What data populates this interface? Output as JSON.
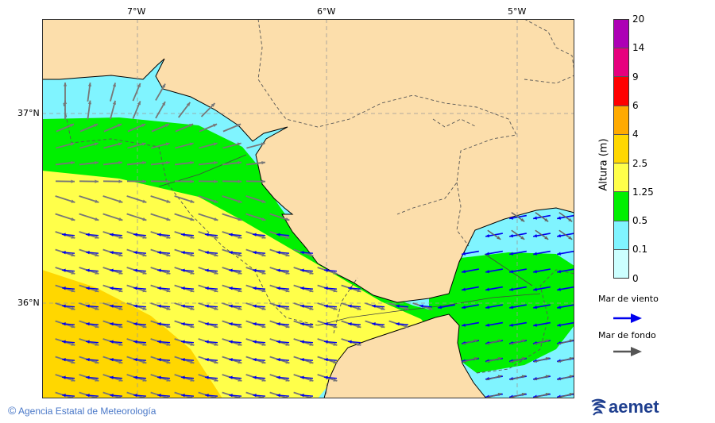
{
  "map": {
    "lon_labels": [
      "7°W",
      "6°W",
      "5°W"
    ],
    "lat_labels": [
      "37°N",
      "36°N"
    ],
    "colors": {
      "land": "#fcdeab",
      "border": "#555555",
      "grid": "#999999"
    }
  },
  "colorbar": {
    "title": "Altura (m)",
    "ticks": [
      "20",
      "14",
      "9",
      "6",
      "4",
      "2.5",
      "1.25",
      "0.5",
      "0.1",
      "0"
    ],
    "bins": [
      {
        "range": "14-20",
        "color": "#ad00b5"
      },
      {
        "range": "9-14",
        "color": "#e6007e"
      },
      {
        "range": "6-9",
        "color": "#ff0000"
      },
      {
        "range": "4-6",
        "color": "#ffaa00"
      },
      {
        "range": "2.5-4",
        "color": "#ffd700"
      },
      {
        "range": "1.25-2.5",
        "color": "#ffff4a"
      },
      {
        "range": "0.5-1.25",
        "color": "#00f000"
      },
      {
        "range": "0.1-0.5",
        "color": "#80f4ff"
      },
      {
        "range": "0-0.1",
        "color": "#ccffff"
      }
    ]
  },
  "legend": {
    "wind_sea": {
      "label": "Mar de viento",
      "color": "#0000ee"
    },
    "swell": {
      "label": "Mar de fondo",
      "color": "#555555"
    }
  },
  "footer": {
    "copyright_symbol": "©",
    "agency": "Agencia Estatal de Meteorología",
    "logo": "aemet"
  }
}
